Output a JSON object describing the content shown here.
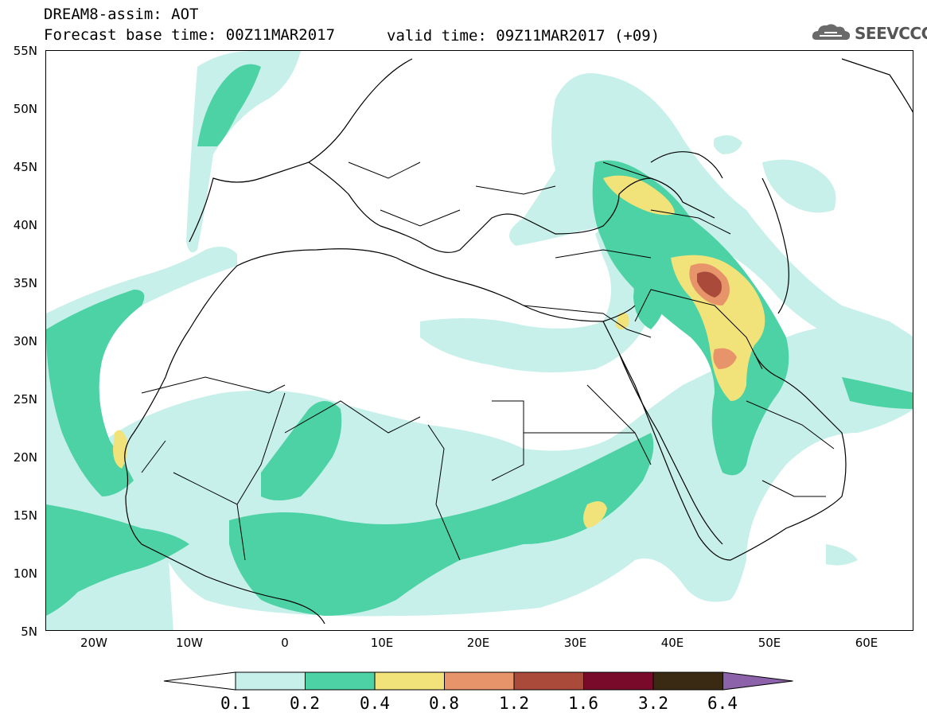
{
  "header": {
    "title": "DREAM8-assim: AOT",
    "base_time": "Forecast base time: 00Z11MAR2017",
    "valid_time": "valid time: 09Z11MAR2017 (+09)",
    "logo": "SEEVCCC"
  },
  "map": {
    "lat_labels": [
      "55N",
      "50N",
      "45N",
      "40N",
      "35N",
      "30N",
      "25N",
      "20N",
      "15N",
      "10N",
      "5N"
    ],
    "lon_labels": [
      "20W",
      "10W",
      "0",
      "10E",
      "20E",
      "30E",
      "40E",
      "50E",
      "60E"
    ],
    "icons": {
      "logo": "cloud-icon"
    }
  },
  "legend": {
    "labels": [
      "0.1",
      "0.2",
      "0.4",
      "0.8",
      "1.2",
      "1.6",
      "3.2",
      "6.4"
    ],
    "colors": [
      "#ffffff",
      "#c8f0ea",
      "#4cd2a4",
      "#f2e27a",
      "#e8946a",
      "#aa4a3a",
      "#7a0a2a",
      "#3a2a14",
      "#8c63ab"
    ]
  }
}
